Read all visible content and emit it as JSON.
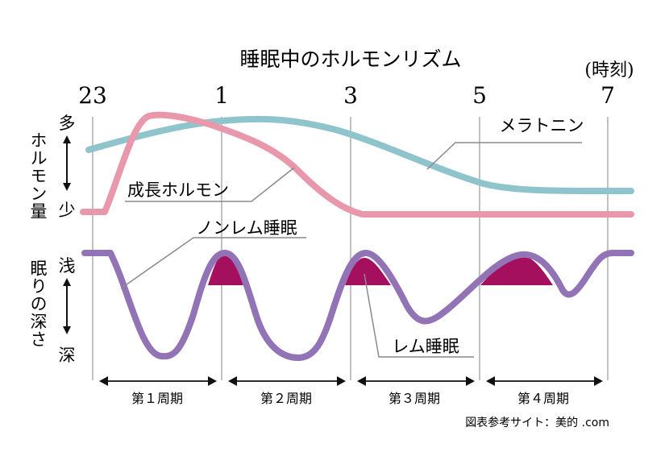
{
  "chart_data": {
    "type": "line",
    "title": "睡眠中のホルモンリズム",
    "x_unit": "(時刻)",
    "x_ticks": [
      "23",
      "1",
      "3",
      "5",
      "7"
    ],
    "x_range": [
      "23:00",
      "7:00"
    ],
    "hormone_axis": {
      "label": "ホルモン量",
      "top": "多",
      "bottom": "少"
    },
    "sleep_axis": {
      "label": "眠りの深さ",
      "top": "浅",
      "bottom": "深"
    },
    "colors": {
      "melatonin": "#8fc4cc",
      "growth_hormone": "#e898aa",
      "sleep_depth": "#9273b5",
      "rem_fill": "#a4105e",
      "grid": "#a0a0a0",
      "leader": "#8a8a8a"
    },
    "series": [
      {
        "name": "メラトニン",
        "x": [
          "23:00",
          "24:00",
          "1:00",
          "2:00",
          "3:00",
          "4:00",
          "5:00",
          "6:00",
          "7:00",
          "7:30"
        ],
        "y": [
          0.58,
          0.76,
          0.86,
          0.86,
          0.74,
          0.48,
          0.22,
          0.14,
          0.14,
          0.14
        ]
      },
      {
        "name": "成長ホルモン",
        "x": [
          "22:40",
          "23:10",
          "23:30",
          "24:00",
          "1:00",
          "2:00",
          "3:00",
          "3:30",
          "5:00",
          "7:00",
          "7:30"
        ],
        "y": [
          0.02,
          0.02,
          0.95,
          0.92,
          0.8,
          0.52,
          0.03,
          0.0,
          0.0,
          0.0,
          0.0
        ]
      },
      {
        "name": "眠りの深さ",
        "x": [
          "22:40",
          "23:20",
          "24:00",
          "24:30",
          "1:00",
          "1:30",
          "2:00",
          "2:30",
          "3:00",
          "3:30",
          "4:00",
          "4:30",
          "5:00",
          "5:40",
          "6:10",
          "6:40",
          "7:00",
          "7:30"
        ],
        "y": [
          1.0,
          1.0,
          0.05,
          0.05,
          1.0,
          0.55,
          0.05,
          0.55,
          1.0,
          0.6,
          0.28,
          0.42,
          0.75,
          1.0,
          0.65,
          0.6,
          1.0,
          1.0
        ]
      }
    ],
    "labels": {
      "melatonin": "メラトニン",
      "growth_hormone": "成長ホルモン",
      "non_rem": "ノンレム睡眠",
      "rem": "レム睡眠"
    },
    "periods": [
      "第１周期",
      "第２周期",
      "第３周期",
      "第４周期"
    ],
    "source": "図表参考サイト：美的 .com"
  }
}
